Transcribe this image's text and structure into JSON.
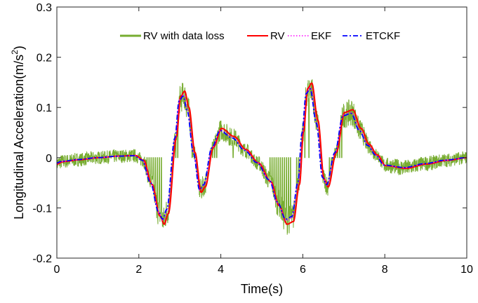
{
  "chart_data": {
    "type": "line",
    "xlabel": "Time(s)",
    "ylabel": "Longitudinal Acceleration(m/s",
    "ylabel_sup": "2",
    "ylabel_close": ")",
    "xlim": [
      0,
      10
    ],
    "ylim": [
      -0.2,
      0.3
    ],
    "xticks": [
      0,
      2,
      4,
      6,
      8,
      10
    ],
    "xtick_labels": [
      "0",
      "2",
      "4",
      "6",
      "8",
      "10"
    ],
    "yticks": [
      -0.2,
      -0.1,
      0,
      0.1,
      0.2,
      0.3
    ],
    "ytick_labels": [
      "-0.2",
      "-0.1",
      "0",
      "0.1",
      "0.2",
      "0.3"
    ],
    "grid": false,
    "legend_position": "top",
    "base_curve": {
      "x": [
        0,
        0.05,
        0.1,
        0.2,
        0.5,
        1.0,
        1.5,
        1.9,
        2.1,
        2.3,
        2.5,
        2.6,
        2.7,
        2.9,
        3.0,
        3.1,
        3.2,
        3.35,
        3.5,
        3.6,
        3.8,
        4.0,
        4.3,
        4.6,
        4.9,
        5.2,
        5.4,
        5.6,
        5.75,
        5.9,
        6.0,
        6.1,
        6.2,
        6.35,
        6.5,
        6.6,
        6.8,
        7.0,
        7.2,
        7.4,
        7.6,
        7.8,
        8.0,
        8.5,
        9.0,
        9.5,
        10.0
      ],
      "y": [
        -0.012,
        -0.01,
        -0.008,
        -0.007,
        -0.004,
        0.0,
        0.003,
        0.004,
        -0.005,
        -0.05,
        -0.11,
        -0.125,
        -0.105,
        0.04,
        0.115,
        0.125,
        0.095,
        0.01,
        -0.065,
        -0.055,
        0.02,
        0.055,
        0.04,
        0.015,
        -0.01,
        -0.045,
        -0.09,
        -0.125,
        -0.12,
        -0.05,
        0.05,
        0.13,
        0.14,
        0.07,
        -0.04,
        -0.055,
        0.01,
        0.085,
        0.09,
        0.055,
        0.025,
        0.005,
        -0.015,
        -0.02,
        -0.012,
        -0.005,
        0.0
      ]
    },
    "series": [
      {
        "name": "RV with data loss",
        "color": "#77ac30",
        "style": "solid",
        "noise": 0.013,
        "dropouts": [
          2.2,
          2.25,
          2.3,
          2.35,
          2.4,
          2.45,
          2.5,
          2.55,
          2.9,
          2.95,
          3.3,
          3.8,
          3.85,
          3.9,
          4.3,
          5.2,
          5.25,
          5.3,
          5.35,
          5.4,
          5.45,
          5.5,
          5.55,
          5.6,
          5.65,
          5.7,
          5.85,
          5.9,
          5.95,
          6.05,
          6.15,
          6.65,
          6.7,
          6.75,
          6.8,
          6.85,
          6.9,
          6.95
        ]
      },
      {
        "name": "RV",
        "color": "#ff0000",
        "style": "solid",
        "scale": 1.06,
        "shift": -0.02
      },
      {
        "name": "EKF",
        "color": "#ff00ff",
        "style": "dotted",
        "scale": 1.0,
        "shift": 0.01
      },
      {
        "name": "ETCKF",
        "color": "#0000ff",
        "style": "dashdot",
        "scale": 0.98,
        "shift": 0.02
      }
    ]
  }
}
